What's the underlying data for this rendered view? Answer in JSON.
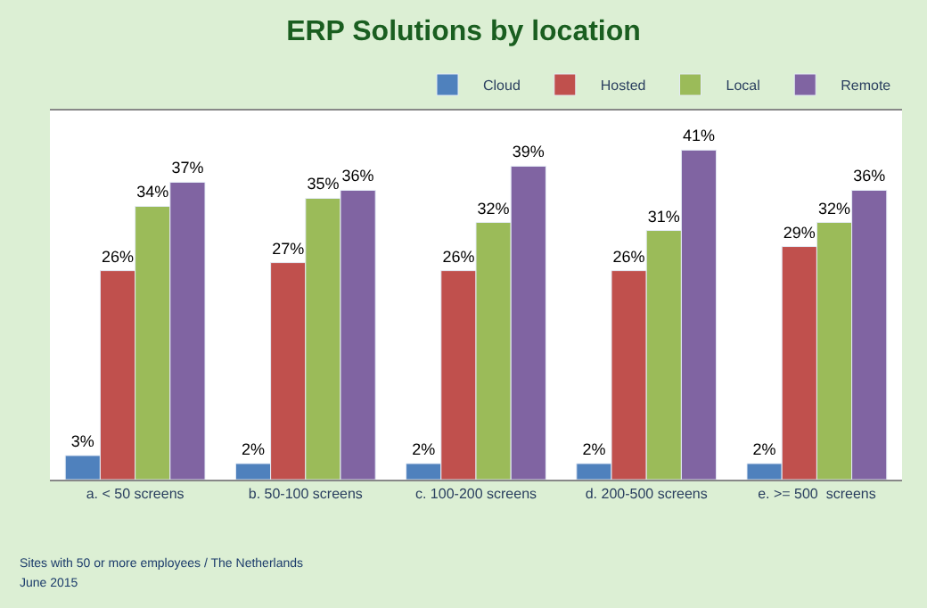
{
  "chart_data": {
    "type": "bar",
    "title": "ERP Solutions by location",
    "categories": [
      "a. < 50 screens",
      "b. 50-100 screens",
      "c. 100-200 screens",
      "d. 200-500 screens",
      "e. >= 500  screens"
    ],
    "series": [
      {
        "name": "Cloud",
        "color": "#4f81bd",
        "values": [
          3,
          2,
          2,
          2,
          2
        ],
        "value_labels": [
          "3%",
          "2%",
          "2%",
          "2%",
          "2%"
        ]
      },
      {
        "name": "Hosted",
        "color": "#c0504d",
        "values": [
          26,
          27,
          26,
          26,
          29
        ],
        "value_labels": [
          "26%",
          "27%",
          "26%",
          "26%",
          "29%"
        ]
      },
      {
        "name": "Local",
        "color": "#9bbb59",
        "values": [
          34,
          35,
          32,
          31,
          32
        ],
        "value_labels": [
          "34%",
          "35%",
          "32%",
          "31%",
          "32%"
        ]
      },
      {
        "name": "Remote",
        "color": "#8064a2",
        "values": [
          37,
          36,
          39,
          41,
          36
        ],
        "value_labels": [
          "37%",
          "36%",
          "39%",
          "41%",
          "36%"
        ]
      }
    ],
    "legend": "top right",
    "annotations": [
      "Sites with 50 or more employees / The Netherlands",
      "June 2015"
    ]
  }
}
